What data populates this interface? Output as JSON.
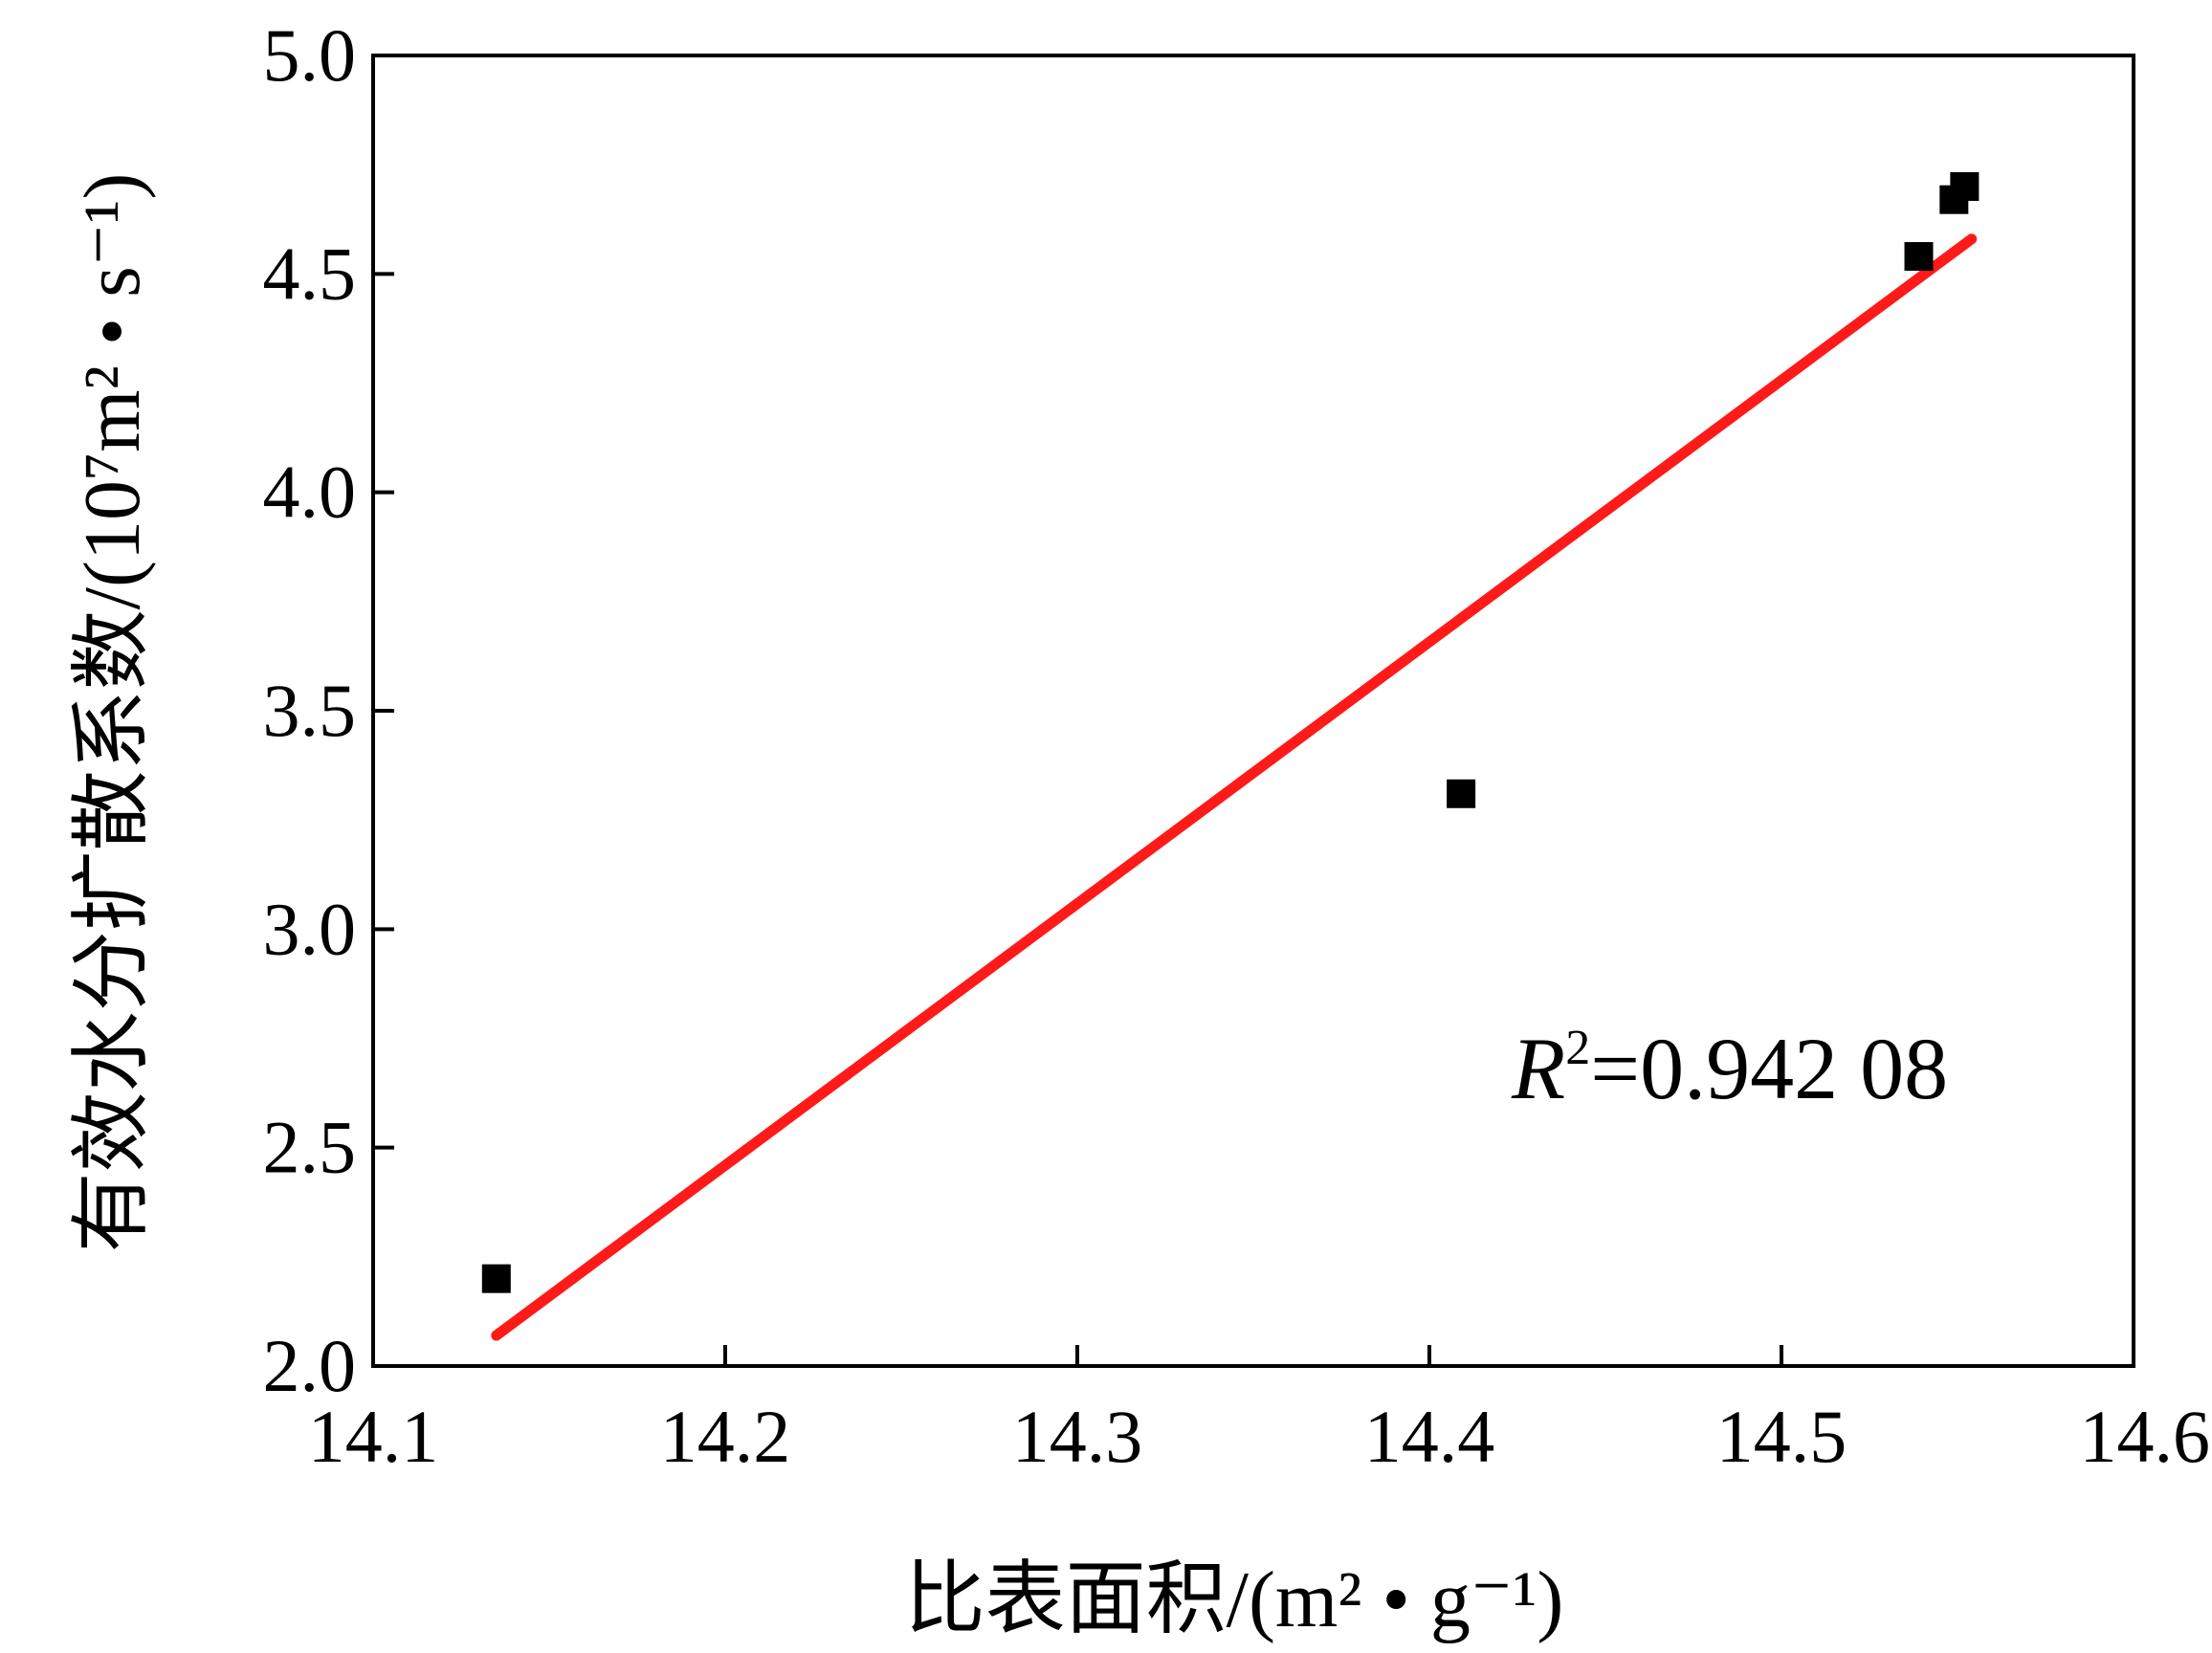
{
  "chart_data": {
    "type": "scatter",
    "xlabel": "比表面积/(m² • g⁻¹)",
    "ylabel": "有效水分扩散系数/(10⁷m² • s⁻¹)",
    "xlim": [
      14.1,
      14.6
    ],
    "ylim": [
      2.0,
      5.0
    ],
    "x_ticks": [
      "14.1",
      "14.2",
      "14.3",
      "14.4",
      "14.5",
      "14.6"
    ],
    "y_ticks": [
      "2.0",
      "2.5",
      "3.0",
      "3.5",
      "4.0",
      "4.5",
      "5.0"
    ],
    "grid": false,
    "points": [
      {
        "x": 14.135,
        "y": 2.2
      },
      {
        "x": 14.409,
        "y": 3.31
      },
      {
        "x": 14.539,
        "y": 4.54
      },
      {
        "x": 14.549,
        "y": 4.67
      },
      {
        "x": 14.552,
        "y": 4.7
      }
    ],
    "fit_line": {
      "x": [
        14.135,
        14.554
      ],
      "y": [
        2.07,
        4.58
      ],
      "color": "#ff1a1a"
    },
    "marker_color": "#000000",
    "annotation": {
      "r_symbol": "R",
      "r_exponent": "2",
      "r_value": "=0.942 08"
    }
  }
}
